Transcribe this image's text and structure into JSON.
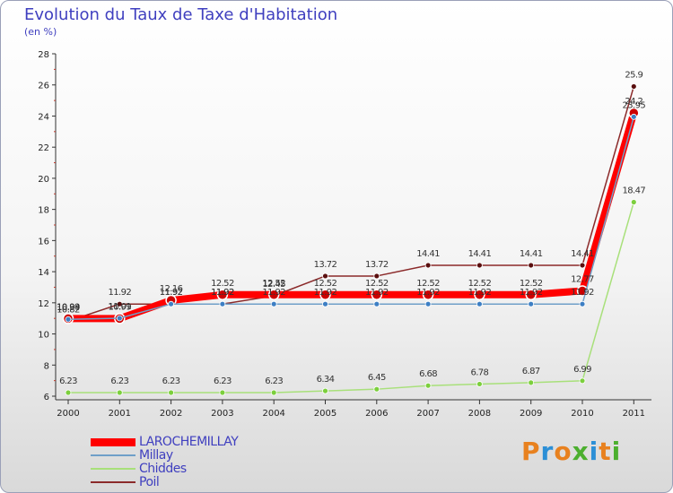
{
  "title": "Evolution du Taux de Taxe d'Habitation",
  "unit": "(en %)",
  "brand": {
    "letters": [
      "P",
      "r",
      "o",
      "x",
      "i",
      "t",
      "i"
    ],
    "colors": [
      "#e8811f",
      "#2c8fd6",
      "#e8811f",
      "#4caf2f",
      "#2c8fd6",
      "#e8811f",
      "#4caf2f"
    ]
  },
  "chart_data": {
    "type": "line",
    "title": "Evolution du Taux de Taxe d'Habitation",
    "ylabel": "(en %)",
    "xlabel": "",
    "categories": [
      "2000",
      "2001",
      "2002",
      "2003",
      "2004",
      "2005",
      "2006",
      "2007",
      "2008",
      "2009",
      "2010",
      "2011"
    ],
    "ylim": [
      6,
      28
    ],
    "yticks": [
      6,
      8,
      10,
      12,
      14,
      16,
      18,
      20,
      22,
      24,
      26,
      28
    ],
    "grid": false,
    "legend_position": "bottom-left",
    "series": [
      {
        "name": "LAROCHEMILLAY",
        "color": "#ff0000",
        "marker": "#cc0000",
        "values": [
          10.99,
          10.99,
          12.16,
          12.52,
          12.52,
          12.52,
          12.52,
          12.52,
          12.52,
          12.52,
          12.77,
          24.2
        ],
        "labels": [
          "10.99",
          "10.99",
          "12.16",
          "12.52",
          "12.52",
          "12.52",
          "12.52",
          "12.52",
          "12.52",
          "12.52",
          "12.77",
          "24.2"
        ]
      },
      {
        "name": "Millay",
        "color": "#6f9fc8",
        "marker": "#3d7fc4",
        "values": [
          10.94,
          11.01,
          11.92,
          11.92,
          11.92,
          11.92,
          11.92,
          11.92,
          11.92,
          11.92,
          11.92,
          23.95
        ],
        "labels": [
          "10.94",
          "11.01",
          "11.92",
          "11.92",
          "11.92",
          "11.92",
          "11.92",
          "11.92",
          "11.92",
          "11.92",
          "11.92",
          "23.95"
        ]
      },
      {
        "name": "Chiddes",
        "color": "#a8e07a",
        "marker": "#7ccf3d",
        "values": [
          6.23,
          6.23,
          6.23,
          6.23,
          6.23,
          6.34,
          6.45,
          6.68,
          6.78,
          6.87,
          6.99,
          18.47
        ],
        "labels": [
          "6.23",
          "6.23",
          "6.23",
          "6.23",
          "6.23",
          "6.34",
          "6.45",
          "6.68",
          "6.78",
          "6.87",
          "6.99",
          "18.47"
        ]
      },
      {
        "name": "Poil",
        "color": "#8b2a2a",
        "marker": "#5a0f0f",
        "values": [
          10.82,
          11.92,
          11.92,
          11.92,
          12.45,
          13.72,
          13.72,
          14.41,
          14.41,
          14.41,
          14.41,
          25.9
        ],
        "labels": [
          "10.82",
          "11.92",
          "11.92",
          "11.92",
          "12.45",
          "13.72",
          "13.72",
          "14.41",
          "14.41",
          "14.41",
          "14.41",
          "25.9"
        ]
      }
    ]
  }
}
